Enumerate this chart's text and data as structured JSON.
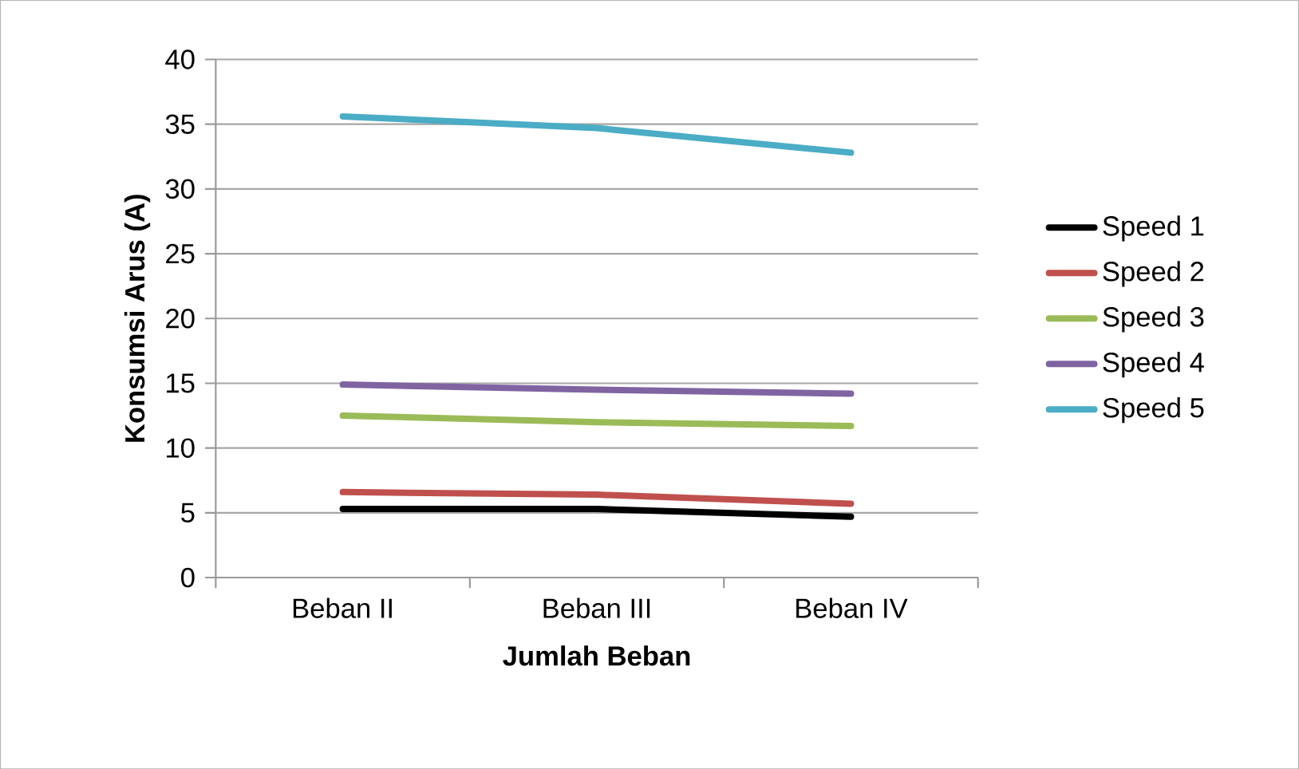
{
  "chart_data": {
    "type": "line",
    "xlabel": "Jumlah Beban",
    "ylabel": "Konsumsi Arus (A)",
    "categories": [
      "Beban II",
      "Beban III",
      "Beban IV"
    ],
    "series": [
      {
        "name": "Speed 1",
        "color": "#000000",
        "values": [
          5.3,
          5.3,
          4.7
        ]
      },
      {
        "name": "Speed 2",
        "color": "#c0504d",
        "values": [
          6.6,
          6.4,
          5.7
        ]
      },
      {
        "name": "Speed 3",
        "color": "#9bbb59",
        "values": [
          12.5,
          12.0,
          11.7
        ]
      },
      {
        "name": "Speed 4",
        "color": "#8064a2",
        "values": [
          14.9,
          14.5,
          14.2
        ]
      },
      {
        "name": "Speed 5",
        "color": "#4bacc6",
        "values": [
          35.6,
          34.7,
          32.8
        ]
      }
    ],
    "ylim": [
      0,
      40
    ],
    "yticks": [
      0,
      5,
      10,
      15,
      20,
      25,
      30,
      35,
      40
    ],
    "grid": "y",
    "legend": "right",
    "marker": "none",
    "line_style": "solid"
  }
}
